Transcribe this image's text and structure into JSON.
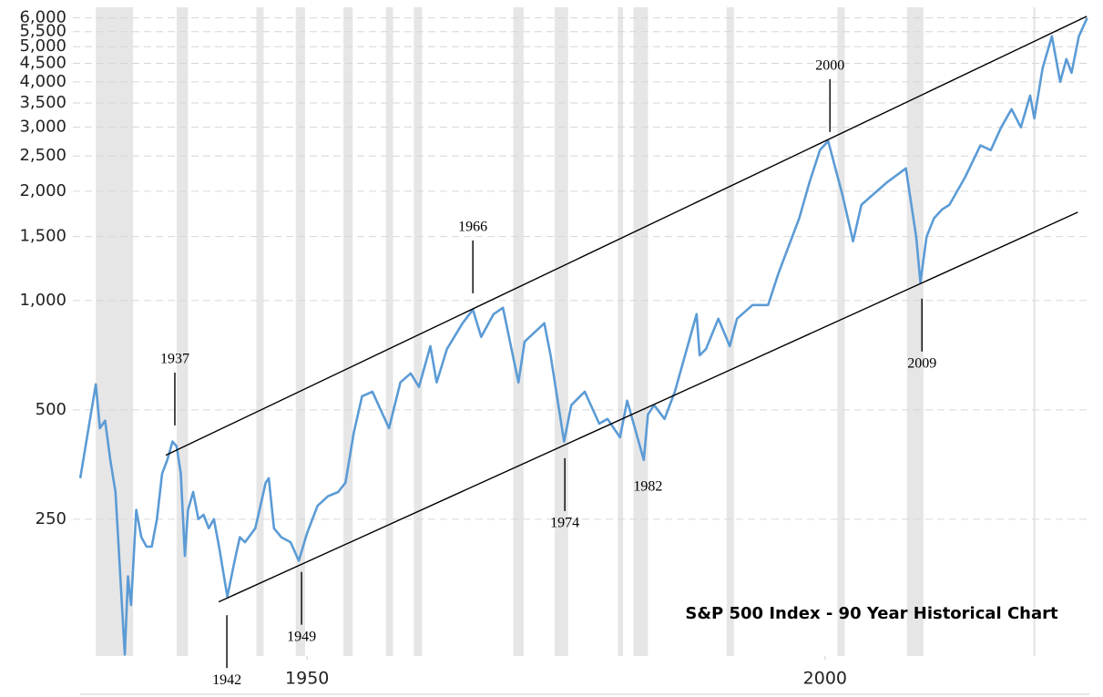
{
  "chart_data": {
    "type": "line",
    "title": "S&P 500 Index - 90 Year Historical Chart",
    "log_scale": true,
    "grid": true,
    "xlim": [
      1928,
      2025.6
    ],
    "xticks": [
      1950,
      2000
    ],
    "ylim": [
      105,
      6200
    ],
    "yticks": [
      {
        "value": 250,
        "label": "250"
      },
      {
        "value": 500,
        "label": "500"
      },
      {
        "value": 1000,
        "label": "1,000"
      },
      {
        "value": 1500,
        "label": "1,500"
      },
      {
        "value": 2000,
        "label": "2,000"
      },
      {
        "value": 2500,
        "label": "2,500"
      },
      {
        "value": 3000,
        "label": "3,000"
      },
      {
        "value": 3500,
        "label": "3,500"
      },
      {
        "value": 4000,
        "label": "4,000"
      },
      {
        "value": 4500,
        "label": "4,500"
      },
      {
        "value": 5000,
        "label": "5,000"
      },
      {
        "value": 5500,
        "label": "5,500"
      },
      {
        "value": 6000,
        "label": "6,000"
      }
    ],
    "recession_color": "#e6e6e6",
    "recessions": [
      [
        1929.6,
        1933.2
      ],
      [
        1937.4,
        1938.5
      ],
      [
        1945.1,
        1945.8
      ],
      [
        1948.9,
        1949.8
      ],
      [
        1953.5,
        1954.4
      ],
      [
        1957.6,
        1958.3
      ],
      [
        1960.3,
        1961.1
      ],
      [
        1969.9,
        1970.9
      ],
      [
        1973.9,
        1975.2
      ],
      [
        1980.0,
        1980.5
      ],
      [
        1981.5,
        1982.9
      ],
      [
        1990.5,
        1991.2
      ],
      [
        2001.2,
        2001.9
      ],
      [
        2007.9,
        2009.5
      ],
      [
        2020.1,
        2020.3
      ]
    ],
    "x": [
      1928.1,
      1929.6,
      1930.0,
      1930.5,
      1931,
      1931.5,
      1932,
      1932.4,
      1932.7,
      1933,
      1933.5,
      1934,
      1934.5,
      1935,
      1935.5,
      1936,
      1936.5,
      1937.0,
      1937.4,
      1937.8,
      1938.2,
      1938.5,
      1939,
      1939.5,
      1940,
      1940.5,
      1941,
      1941.5,
      1942.3,
      1943,
      1943.5,
      1944,
      1945,
      1946.0,
      1946.3,
      1946.8,
      1947.5,
      1948.4,
      1949.2,
      1950,
      1951,
      1952,
      1953,
      1953.7,
      1954.5,
      1955.3,
      1956.3,
      1957.5,
      1957.9,
      1959,
      1960,
      1960.8,
      1961.9,
      1962.5,
      1963.5,
      1965,
      1966.0,
      1966.8,
      1968,
      1968.9,
      1970.4,
      1971,
      1972.9,
      1973.5,
      1974.8,
      1975.5,
      1976.8,
      1978.2,
      1979,
      1980.2,
      1980.9,
      1982.5,
      1982.9,
      1983.5,
      1984.5,
      1985.5,
      1987.6,
      1987.9,
      1988.5,
      1989.7,
      1990.8,
      1991.5,
      1993,
      1994.5,
      1995.5,
      1996.5,
      1997.5,
      1998.5,
      1999.5,
      2000.3,
      2001.0,
      2001.7,
      2002.7,
      2003.5,
      2004.5,
      2006,
      2007.8,
      2008.8,
      2009.2,
      2009.8,
      2010.5,
      2011.3,
      2012,
      2013.5,
      2015,
      2016,
      2017,
      2018,
      2018.9,
      2019.8,
      2020.2,
      2021,
      2021.9,
      2022.7,
      2023.3,
      2023.8,
      2024.5,
      2025.3
    ],
    "series": [
      {
        "color": "#5b9bd5",
        "values": [
          324,
          588,
          445,
          467,
          364,
          297,
          167,
          106,
          174,
          145,
          265,
          223,
          210,
          210,
          250,
          334,
          364,
          409,
          397,
          334,
          198,
          265,
          297,
          250,
          257,
          236,
          250,
          210,
          153,
          192,
          223,
          216,
          236,
          315,
          324,
          236,
          223,
          216,
          192,
          229,
          272,
          289,
          297,
          315,
          432,
          545,
          561,
          472,
          445,
          595,
          630,
          578,
          749,
          595,
          735,
          866,
          944,
          794,
          917,
          955,
          595,
          771,
          866,
          707,
          409,
          515,
          561,
          458,
          472,
          420,
          530,
          364,
          486,
          515,
          472,
          561,
          917,
          707,
          735,
          891,
          749,
          891,
          972,
          972,
          1189,
          1414,
          1682,
          2119,
          2595,
          2749,
          2311,
          1943,
          1456,
          1834,
          1943,
          2119,
          2311,
          1498,
          1122,
          1498,
          1682,
          1782,
          1834,
          2181,
          2673,
          2595,
          3000,
          3364,
          3000,
          3667,
          3175,
          4364,
          5341,
          4000,
          4623,
          4237,
          5341,
          6000
        ]
      }
    ],
    "trend_lines": [
      {
        "color": "#000000",
        "x": [
          1936.36,
          2025.27
        ],
        "values": [
          375,
          6063
        ]
      },
      {
        "color": "#000000",
        "x": [
          1941.46,
          2024.4
        ],
        "values": [
          148,
          1751
        ]
      }
    ],
    "annotations": [
      {
        "label": "1937",
        "x": 1937.23,
        "value": 453,
        "side": "above",
        "pointer": true
      },
      {
        "label": "1942",
        "x": 1942.25,
        "value": 136,
        "side": "below",
        "pointer": true
      },
      {
        "label": "1949",
        "x": 1949.46,
        "value": 179,
        "side": "below",
        "pointer": true
      },
      {
        "label": "1966",
        "x": 1966.0,
        "value": 1047,
        "side": "above",
        "pointer": true
      },
      {
        "label": "1974",
        "x": 1974.88,
        "value": 368,
        "side": "below",
        "pointer": true
      },
      {
        "label": "1982",
        "x": 1982.9,
        "value": 332,
        "side": "below",
        "pointer": false
      },
      {
        "label": "2000",
        "x": 2000.47,
        "value": 2911,
        "side": "above",
        "pointer": true
      },
      {
        "label": "2009",
        "x": 2009.35,
        "value": 1012,
        "side": "below",
        "pointer": true
      }
    ]
  }
}
